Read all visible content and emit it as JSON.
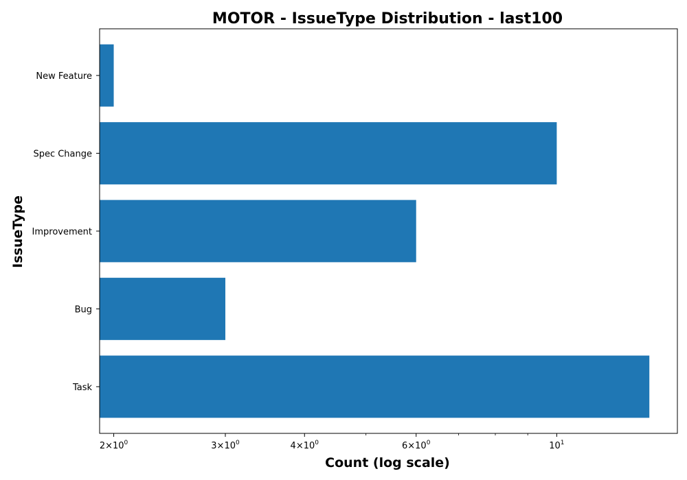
{
  "chart_data": {
    "type": "bar",
    "orientation": "horizontal",
    "title": "MOTOR - IssueType Distribution - last100",
    "xlabel": "Count (log scale)",
    "ylabel": "IssueType",
    "x_scale": "log",
    "xlim": [
      1.9,
      15.5
    ],
    "categories": [
      "Task",
      "Bug",
      "Improvement",
      "Spec Change",
      "New Feature"
    ],
    "values": [
      14,
      3,
      6,
      10,
      2
    ],
    "bar_color": "#1f77b4",
    "grid": false,
    "legend": "none",
    "x_ticks": [
      {
        "value": 2,
        "mantissa": "2",
        "base": "10",
        "exp": "0"
      },
      {
        "value": 3,
        "mantissa": "3",
        "base": "10",
        "exp": "0"
      },
      {
        "value": 4,
        "mantissa": "4",
        "base": "10",
        "exp": "0"
      },
      {
        "value": 6,
        "mantissa": "6",
        "base": "10",
        "exp": "0"
      },
      {
        "value": 10,
        "mantissa": "",
        "base": "10",
        "exp": "1"
      }
    ],
    "x_minor_ticks": [
      5,
      7,
      8,
      9
    ]
  }
}
